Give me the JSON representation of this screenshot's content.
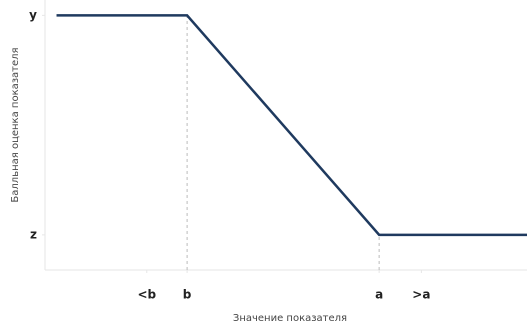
{
  "chart_data": {
    "type": "line",
    "x_label": "Значение показателя",
    "y_label": "Балльная оценка показателя",
    "x": [
      -0.68,
      0,
      1,
      1.77
    ],
    "series": [
      {
        "color": "#1f3a5f",
        "values": [
          1,
          1,
          0,
          0
        ]
      }
    ],
    "xlim": [
      -0.74,
      1.77
    ],
    "ylim": [
      -0.16,
      1.07
    ],
    "xticks": [
      {
        "value": -0.21,
        "label": "<b"
      },
      {
        "value": 0,
        "label": "b"
      },
      {
        "value": 1,
        "label": "a"
      },
      {
        "value": 1.22,
        "label": ">a"
      }
    ],
    "yticks": [
      {
        "value": 1,
        "label": "y"
      },
      {
        "value": 0,
        "label": "z"
      }
    ]
  }
}
